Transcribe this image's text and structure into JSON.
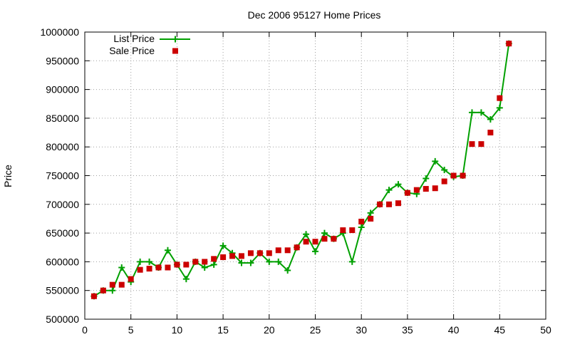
{
  "chart_data": {
    "type": "line",
    "title": "Dec 2006 95127 Home Prices",
    "xlabel": "",
    "ylabel": "Price",
    "xlim": [
      0,
      50
    ],
    "ylim": [
      500000,
      1000000
    ],
    "x_ticks": [
      0,
      5,
      10,
      15,
      20,
      25,
      30,
      35,
      40,
      45,
      50
    ],
    "y_ticks": [
      500000,
      550000,
      600000,
      650000,
      700000,
      750000,
      800000,
      850000,
      900000,
      950000,
      1000000
    ],
    "grid": true,
    "legend_position": "top-left",
    "series": [
      {
        "name": "List Price",
        "style": "line-with-plus-markers",
        "color": "#00a000",
        "x": [
          1,
          2,
          3,
          4,
          5,
          6,
          7,
          8,
          9,
          10,
          11,
          12,
          13,
          14,
          15,
          16,
          17,
          18,
          19,
          20,
          21,
          22,
          23,
          24,
          25,
          26,
          27,
          28,
          29,
          30,
          31,
          32,
          33,
          34,
          35,
          36,
          37,
          38,
          39,
          40,
          41,
          42,
          43,
          44,
          45,
          46
        ],
        "y": [
          540000,
          550000,
          550000,
          590000,
          565000,
          600000,
          600000,
          590000,
          620000,
          595000,
          570000,
          600000,
          590000,
          595000,
          628000,
          615000,
          598000,
          598000,
          615000,
          600000,
          600000,
          585000,
          625000,
          648000,
          618000,
          650000,
          640000,
          650000,
          600000,
          660000,
          685000,
          700000,
          725000,
          735000,
          720000,
          718000,
          745000,
          775000,
          760000,
          748000,
          750000,
          860000,
          860000,
          848000,
          868000,
          980000
        ]
      },
      {
        "name": "Sale Price",
        "style": "square-markers",
        "color": "#cc0000",
        "x": [
          1,
          2,
          3,
          4,
          5,
          6,
          7,
          8,
          9,
          10,
          11,
          12,
          13,
          14,
          15,
          16,
          17,
          18,
          19,
          20,
          21,
          22,
          23,
          24,
          25,
          26,
          27,
          28,
          29,
          30,
          31,
          32,
          33,
          34,
          35,
          36,
          37,
          38,
          39,
          40,
          41,
          42,
          43,
          44,
          45,
          46
        ],
        "y": [
          540000,
          550000,
          560000,
          560000,
          570000,
          586000,
          588000,
          590000,
          590000,
          595000,
          595000,
          600000,
          600000,
          605000,
          608000,
          610000,
          610000,
          615000,
          615000,
          615000,
          620000,
          620000,
          625000,
          635000,
          635000,
          640000,
          640000,
          655000,
          655000,
          670000,
          675000,
          700000,
          700000,
          702000,
          720000,
          725000,
          727000,
          728000,
          740000,
          750000,
          750000,
          805000,
          805000,
          825000,
          885000,
          980000
        ]
      }
    ]
  }
}
